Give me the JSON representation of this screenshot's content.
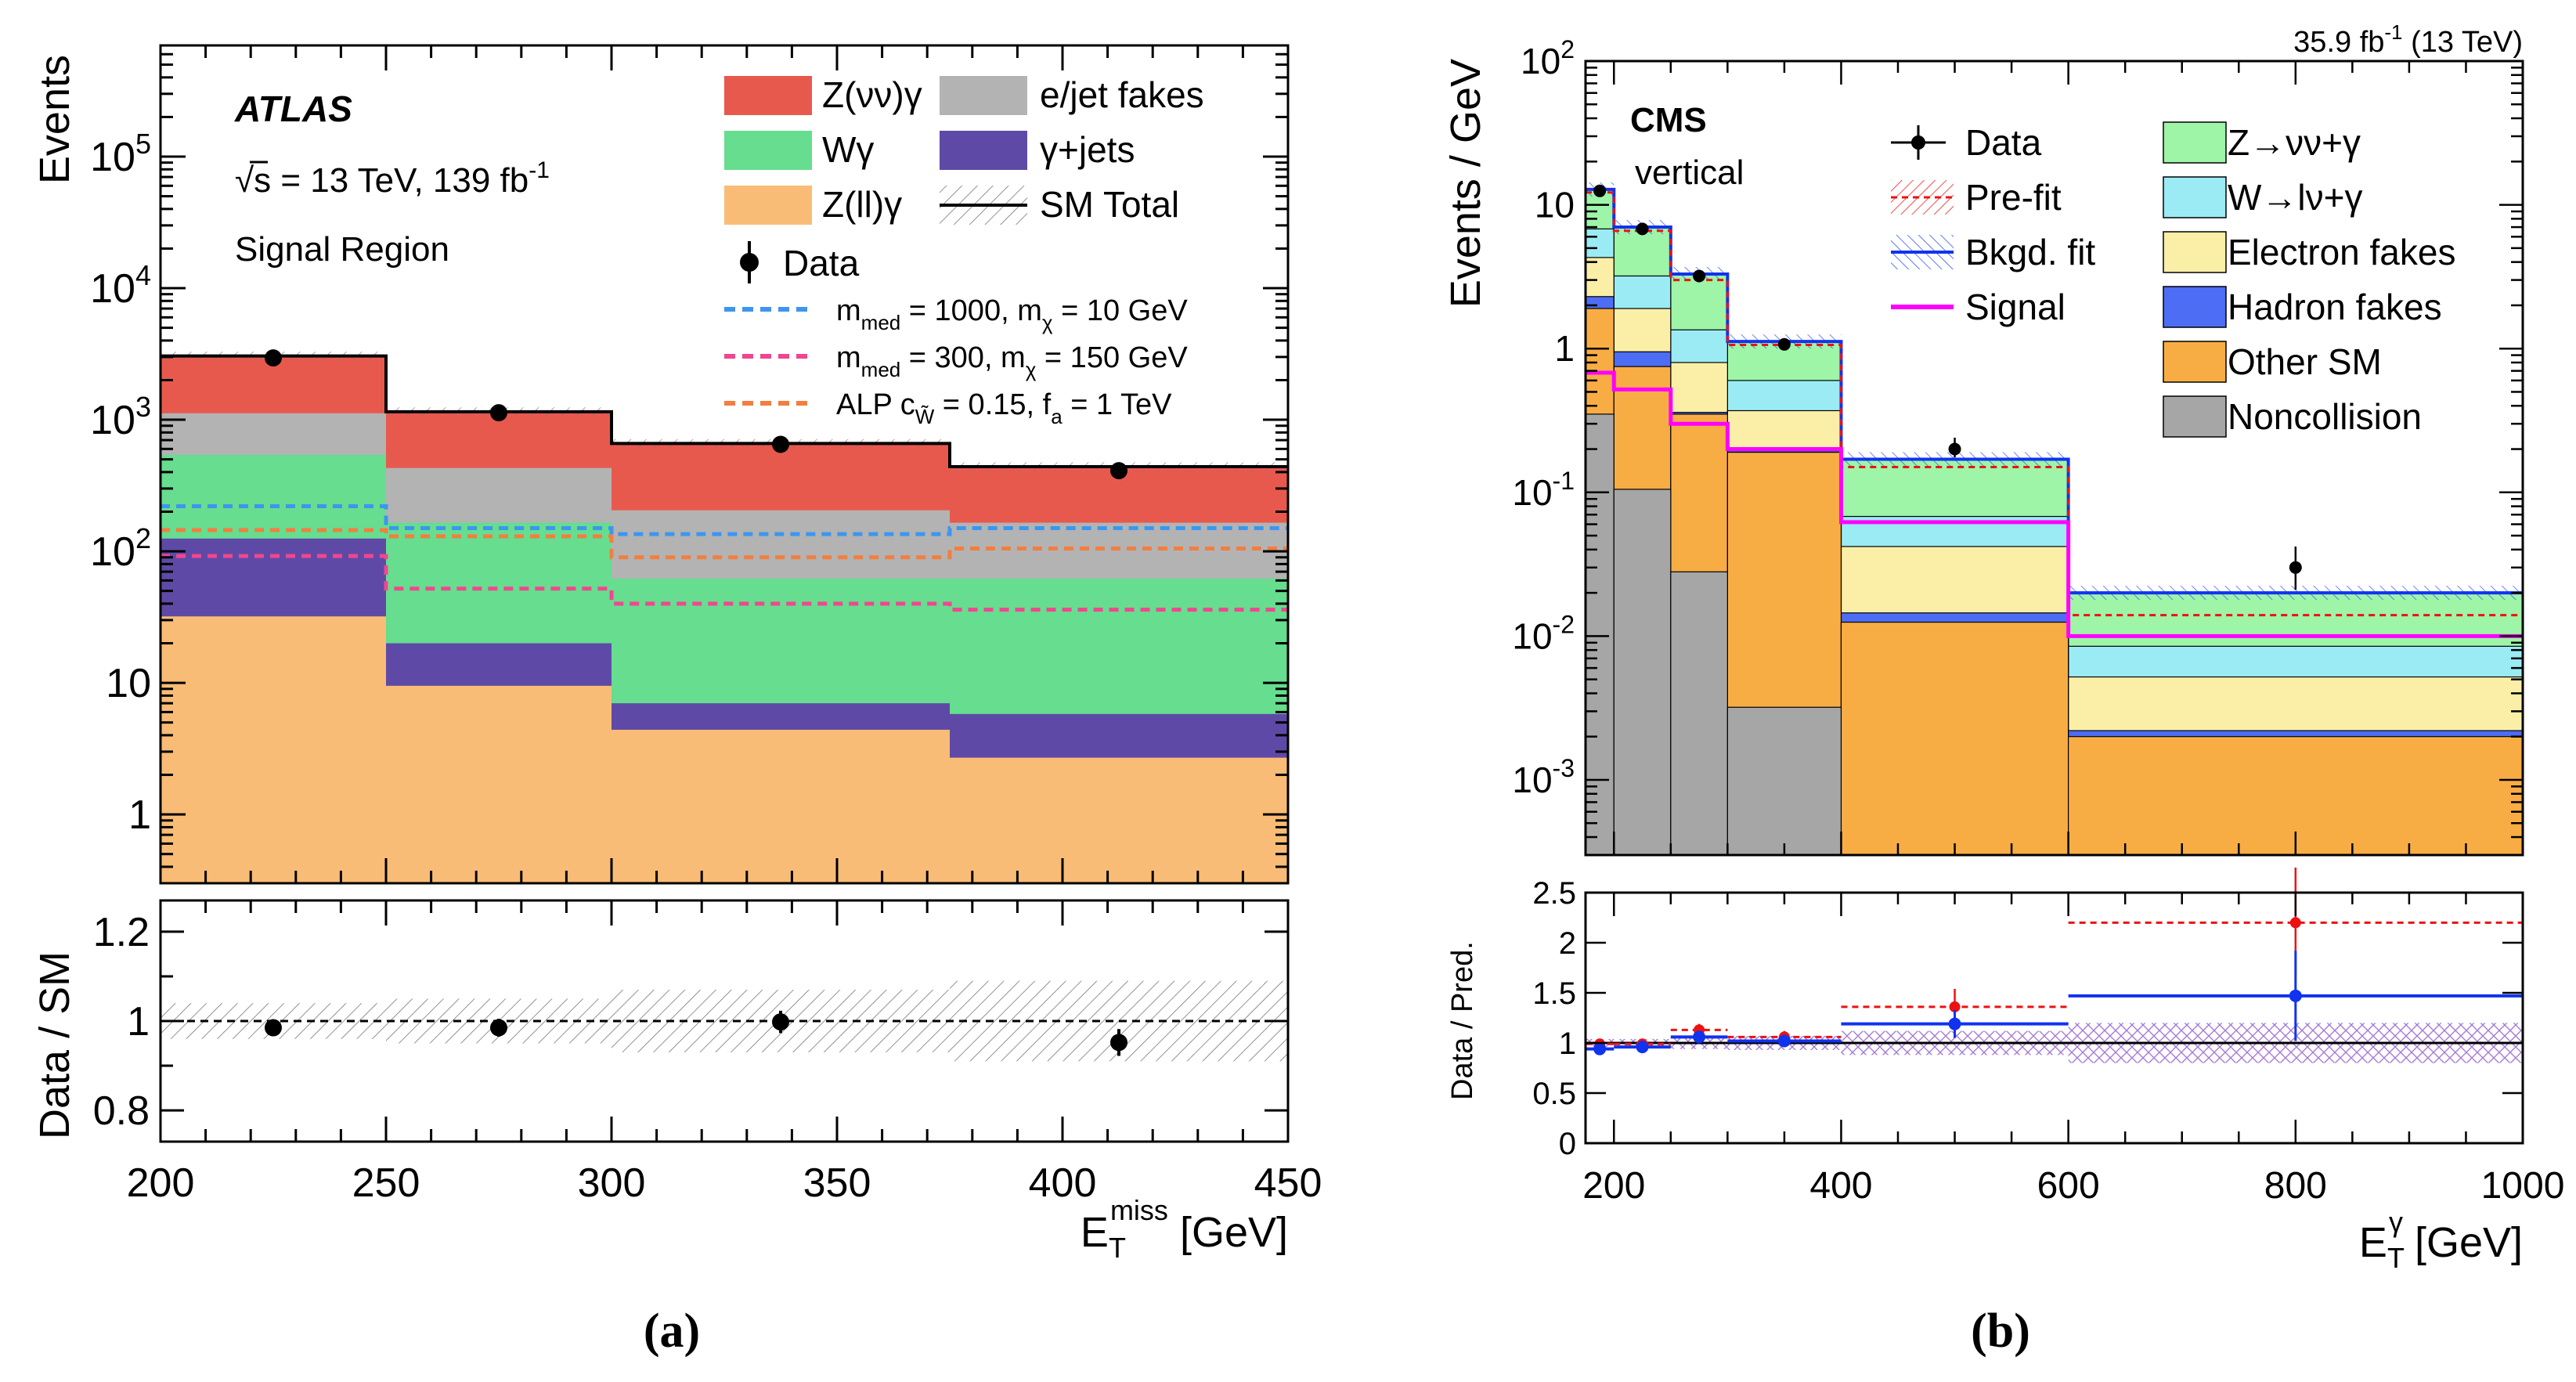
{
  "colors": {
    "z_nunu_gamma_a": "#e8594d",
    "e_jet_fakes": "#b3b3b3",
    "w_gamma_a": "#66dd8f",
    "gamma_jets": "#5e4aa6",
    "z_ll_gamma": "#f9bc76",
    "mmed1000": "#3d95f0",
    "mmed300": "#f1468f",
    "alp": "#f27e40",
    "cms_znng": "#9ef5a8",
    "cms_wlng": "#9bebf5",
    "cms_efakes": "#fbefa8",
    "cms_hfakes": "#4d6df5",
    "cms_other": "#f8ad44",
    "cms_noncoll": "#a6a6a6",
    "cms_signal": "#ff00ff",
    "cms_prefit": "#ee1111",
    "cms_bkgfit": "#1133ee"
  },
  "labels": {
    "panel_a": "(a)",
    "panel_b": "(b)"
  },
  "chart_data": [
    {
      "type": "bar",
      "subtype": "stacked-histogram-with-ratio",
      "experiment": "ATLAS",
      "energy_label": "√s = 13 TeV, 139 fb",
      "energy_sup": "-1",
      "region": "Signal Region",
      "ylabel": "Events",
      "ratio_ylabel": "Data / SM",
      "xlabel_main": "E",
      "xlabel_sub": "T",
      "xlabel_sup": "miss",
      "xlabel_unit": " [GeV]",
      "xlim": [
        200,
        450
      ],
      "ylim": [
        0.3,
        700000
      ],
      "yscale": "log",
      "ratio_ylim": [
        0.73,
        1.27
      ],
      "x_ticks": [
        200,
        250,
        300,
        350,
        400,
        450
      ],
      "x_tick_labels": [
        "200",
        "250",
        "300",
        "350",
        "400",
        "450"
      ],
      "y_ticks": [
        {
          "v": 1,
          "b": "1",
          "s": ""
        },
        {
          "v": 10,
          "b": "10",
          "s": ""
        },
        {
          "v": 100,
          "b": "10",
          "s": "2"
        },
        {
          "v": 1000,
          "b": "10",
          "s": "3"
        },
        {
          "v": 10000,
          "b": "10",
          "s": "4"
        },
        {
          "v": 100000,
          "b": "10",
          "s": "5"
        }
      ],
      "ratio_ticks": [
        "0.8",
        "1",
        "1.2"
      ],
      "bin_edges": [
        200,
        250,
        300,
        375,
        450
      ],
      "stack_order_bottom_to_top": [
        "Z(ll)γ",
        "γ+jets",
        "Wγ",
        "e/jet fakes",
        "Z(νν)γ"
      ],
      "stack_tops": [
        {
          "name": "Z(ll)γ",
          "values": [
            32,
            9.5,
            4.4,
            2.7
          ]
        },
        {
          "name": "γ+jets",
          "values": [
            125,
            20,
            7,
            5.8
          ]
        },
        {
          "name": "Wγ",
          "values": [
            540,
            165,
            62,
            62
          ]
        },
        {
          "name": "e/jet fakes",
          "values": [
            1120,
            430,
            205,
            165
          ]
        },
        {
          "name": "Z(νν)γ",
          "values": [
            3050,
            1150,
            660,
            440
          ]
        }
      ],
      "data_x": [
        225,
        275,
        337.5,
        412.5
      ],
      "data_y": [
        2950,
        1130,
        650,
        410
      ],
      "signal_lines": [
        {
          "name": "m_med = 1000, m_χ = 10 GeV",
          "values": [
            220,
            150,
            135,
            150
          ]
        },
        {
          "name": "m_med = 300, m_χ = 150 GeV",
          "values": [
            92,
            52,
            40,
            36
          ]
        },
        {
          "name": "ALP c = 0.15, f_a = 1 TeV",
          "values": [
            145,
            130,
            90,
            105
          ]
        }
      ],
      "ratio_points": [
        0.985,
        0.985,
        0.998,
        0.952
      ],
      "ratio_errors": [
        0.012,
        0.02,
        0.025,
        0.03
      ],
      "ratio_band_half_width": [
        0.04,
        0.05,
        0.07,
        0.09
      ],
      "legend": {
        "col1": [
          "Z(νν)γ",
          "Wγ",
          "Z(ll)γ"
        ],
        "col2": [
          "e/jet fakes",
          "γ+jets",
          "SM Total"
        ],
        "data": "Data",
        "lines": [
          {
            "pre": "m",
            "sub1": "med",
            "mid": " = 1000, m",
            "sub2": "χ",
            "post": " = 10 GeV"
          },
          {
            "pre": "m",
            "sub1": "med",
            "mid": " = 300, m",
            "sub2": "χ",
            "post": " = 150 GeV"
          },
          {
            "pre": "ALP c",
            "sub1": "W̃",
            "mid": " = 0.15, f",
            "sub2": "a",
            "post": " = 1 TeV"
          }
        ]
      }
    },
    {
      "type": "bar",
      "subtype": "stacked-histogram-with-ratio",
      "experiment": "CMS",
      "sub_label": "vertical",
      "lumi": "35.9 fb",
      "lumi_sup": "-1",
      "lumi_post": " (13 TeV)",
      "ylabel": "Events / GeV",
      "ratio_ylabel": "Data / Pred.",
      "xlabel_main": "E",
      "xlabel_sub": "T",
      "xlabel_sup": "γ",
      "xlabel_unit": " [GeV]",
      "xlim": [
        175,
        1000
      ],
      "ylim": [
        0.0003,
        100
      ],
      "yscale": "log",
      "ratio_ylim": [
        0,
        2.5
      ],
      "x_ticks": [
        200,
        400,
        600,
        800,
        1000
      ],
      "x_tick_labels": [
        "200",
        "400",
        "600",
        "800",
        "1000"
      ],
      "y_ticks": [
        {
          "v": 0.001,
          "b": "10",
          "s": "-3"
        },
        {
          "v": 0.01,
          "b": "10",
          "s": "-2"
        },
        {
          "v": 0.1,
          "b": "10",
          "s": "-1"
        },
        {
          "v": 1,
          "b": "1",
          "s": ""
        },
        {
          "v": 10,
          "b": "10",
          "s": ""
        },
        {
          "v": 100,
          "b": "10",
          "s": "2"
        }
      ],
      "ratio_ticks": [
        "0",
        "0.5",
        "1",
        "1.5",
        "2",
        "2.5"
      ],
      "bin_edges": [
        175,
        200,
        250,
        300,
        400,
        600,
        1000
      ],
      "stack_order_bottom_to_top": [
        "Noncollision",
        "Other SM",
        "Hadron fakes",
        "Electron fakes",
        "W→lν+γ",
        "Z→νν+γ"
      ],
      "stack_tops": [
        {
          "name": "Noncollision",
          "values": [
            0.35,
            0.105,
            0.028,
            0.0032,
            0.0003,
            0.0003
          ]
        },
        {
          "name": "Other SM",
          "values": [
            1.9,
            0.75,
            0.35,
            0.19,
            0.0125,
            0.002
          ]
        },
        {
          "name": "Hadron fakes",
          "values": [
            2.3,
            0.95,
            0.36,
            0.195,
            0.0145,
            0.0022
          ]
        },
        {
          "name": "Electron fakes",
          "values": [
            4.3,
            1.9,
            0.8,
            0.37,
            0.042,
            0.0052
          ]
        },
        {
          "name": "W→lν+γ",
          "values": [
            6.8,
            3.2,
            1.35,
            0.6,
            0.068,
            0.0085
          ]
        },
        {
          "name": "Z→νν+γ",
          "values": [
            12.8,
            7.0,
            3.3,
            1.12,
            0.17,
            0.02
          ]
        }
      ],
      "prefit": [
        12.2,
        6.6,
        3.0,
        1.06,
        0.15,
        0.014
      ],
      "signal": [
        0.68,
        0.52,
        0.3,
        0.2,
        0.062,
        0.01
      ],
      "data_x": [
        187.5,
        225,
        275,
        350,
        500,
        800
      ],
      "data_y": [
        12.5,
        6.8,
        3.2,
        1.07,
        0.2,
        0.03
      ],
      "data_err_hi": [
        13.3,
        7.3,
        3.5,
        1.12,
        0.24,
        0.042
      ],
      "data_err_lo": [
        11.7,
        6.3,
        2.9,
        1.02,
        0.175,
        0.021
      ],
      "ratio_prefit": [
        0.99,
        0.99,
        1.13,
        1.06,
        1.36,
        2.2
      ],
      "ratio_bkgfit": [
        0.94,
        0.96,
        1.06,
        1.02,
        1.19,
        1.47
      ],
      "ratio_prefit_err": [
        0.05,
        0.05,
        0.06,
        0.06,
        0.18,
        0.55
      ],
      "ratio_bkgfit_err": [
        0.04,
        0.04,
        0.05,
        0.05,
        0.14,
        0.45
      ],
      "ratio_band_half_width": [
        0.04,
        0.04,
        0.06,
        0.07,
        0.12,
        0.2
      ],
      "legend": {
        "col1": [
          "Data",
          "Pre-fit",
          "Bkgd. fit",
          "Signal"
        ],
        "col2": [
          "Z→νν+γ",
          "W→lν+γ",
          "Electron fakes",
          "Hadron fakes",
          "Other SM",
          "Noncollision"
        ]
      }
    }
  ]
}
